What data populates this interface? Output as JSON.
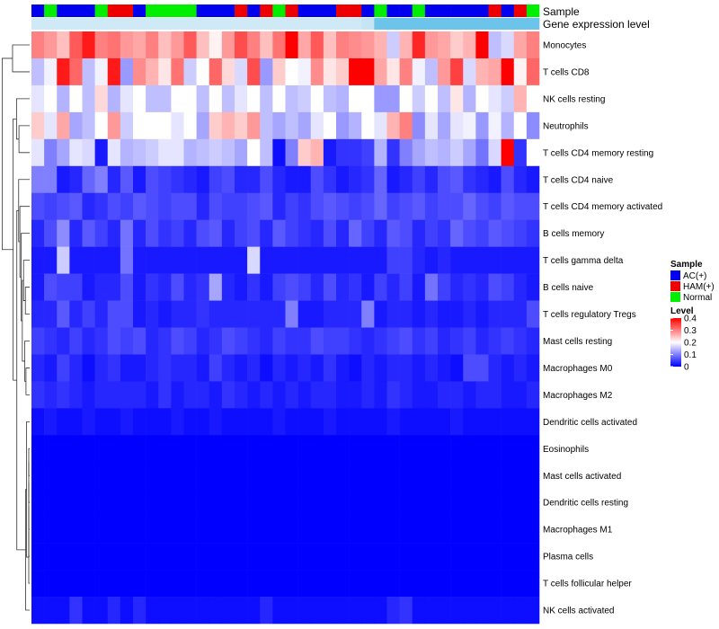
{
  "chart_data": {
    "type": "heatmap",
    "title": "",
    "rows": [
      "Monocytes",
      "T cells CD8",
      "NK cells resting",
      "Neutrophils",
      "T cells CD4 memory resting",
      "T cells CD4 naive",
      "T cells CD4 memory activated",
      "B cells memory",
      "T cells gamma delta",
      "B cells naive",
      "T cells regulatory  Tregs",
      "Mast cells resting",
      "Macrophages M0",
      "Macrophages M2",
      "Dendritic cells activated",
      "Eosinophils",
      "Mast cells activated",
      "Dendritic cells resting",
      "Macrophages M1",
      "Plasma cells",
      "T cells follicular helper",
      "NK cells activated"
    ],
    "annotation_tracks": {
      "sample_label": "Sample",
      "expression_label": "Gene expression level",
      "sample_groups": [
        "AC(+)",
        "Normal",
        "AC(+)",
        "AC(+)",
        "AC(+)",
        "Normal",
        "HAM(+)",
        "HAM(+)",
        "AC(+)",
        "Normal",
        "Normal",
        "Normal",
        "Normal",
        "AC(+)",
        "AC(+)",
        "AC(+)",
        "HAM(+)",
        "AC(+)",
        "HAM(+)",
        "Normal",
        "HAM(+)",
        "AC(+)",
        "AC(+)",
        "AC(+)",
        "HAM(+)",
        "HAM(+)",
        "AC(+)",
        "Normal",
        "AC(+)",
        "AC(+)",
        "Normal",
        "AC(+)",
        "AC(+)",
        "AC(+)",
        "AC(+)",
        "AC(+)",
        "HAM(+)",
        "AC(+)",
        "HAM(+)",
        "Normal"
      ],
      "expression_levels": [
        0.1,
        0.1,
        0.1,
        0.1,
        0.1,
        0.1,
        0.1,
        0.1,
        0.1,
        0.1,
        0.1,
        0.1,
        0.1,
        0.1,
        0.1,
        0.1,
        0.1,
        0.1,
        0.1,
        0.1,
        0.1,
        0.1,
        0.1,
        0.1,
        0.1,
        0.1,
        0.12,
        0.3,
        0.3,
        0.3,
        0.3,
        0.3,
        0.3,
        0.3,
        0.3,
        0.3,
        0.3,
        0.3,
        0.3,
        0.3
      ]
    },
    "values": [
      [
        0.3,
        0.28,
        0.25,
        0.33,
        0.38,
        0.3,
        0.31,
        0.28,
        0.27,
        0.3,
        0.25,
        0.28,
        0.33,
        0.25,
        0.21,
        0.28,
        0.34,
        0.3,
        0.25,
        0.31,
        0.4,
        0.27,
        0.33,
        0.25,
        0.3,
        0.29,
        0.28,
        0.26,
        0.16,
        0.26,
        0.37,
        0.28,
        0.27,
        0.24,
        0.26,
        0.4,
        0.15,
        0.17,
        0.27,
        0.3
      ],
      [
        0.15,
        0.19,
        0.38,
        0.32,
        0.15,
        0.19,
        0.38,
        0.12,
        0.29,
        0.26,
        0.22,
        0.31,
        0.16,
        0.2,
        0.32,
        0.23,
        0.17,
        0.34,
        0.12,
        0.24,
        0.2,
        0.19,
        0.29,
        0.22,
        0.24,
        0.44,
        0.44,
        0.27,
        0.22,
        0.3,
        0.19,
        0.15,
        0.28,
        0.35,
        0.17,
        0.26,
        0.27,
        0.42,
        0.21,
        0.32
      ],
      [
        0.18,
        0.2,
        0.14,
        0.2,
        0.15,
        0.23,
        0.14,
        0.18,
        0.2,
        0.15,
        0.15,
        0.2,
        0.2,
        0.15,
        0.2,
        0.15,
        0.18,
        0.2,
        0.15,
        0.2,
        0.15,
        0.16,
        0.2,
        0.15,
        0.14,
        0.2,
        0.2,
        0.12,
        0.12,
        0.2,
        0.16,
        0.2,
        0.15,
        0.22,
        0.14,
        0.2,
        0.18,
        0.16,
        0.26,
        0.2
      ],
      [
        0.24,
        0.18,
        0.27,
        0.13,
        0.15,
        0.2,
        0.28,
        0.16,
        0.2,
        0.2,
        0.2,
        0.18,
        0.2,
        0.13,
        0.24,
        0.26,
        0.24,
        0.28,
        0.15,
        0.13,
        0.15,
        0.13,
        0.18,
        0.2,
        0.12,
        0.14,
        0.2,
        0.18,
        0.26,
        0.3,
        0.11,
        0.18,
        0.13,
        0.18,
        0.19,
        0.12,
        0.19,
        0.14,
        0.2,
        0.11
      ],
      [
        0.18,
        0.1,
        0.13,
        0.18,
        0.17,
        0.02,
        0.18,
        0.14,
        0.15,
        0.16,
        0.18,
        0.18,
        0.14,
        0.15,
        0.16,
        0.15,
        0.13,
        0.2,
        0.15,
        0.01,
        0.1,
        0.24,
        0.26,
        0.02,
        0.04,
        0.04,
        0.05,
        0.14,
        0.04,
        0.1,
        0.13,
        0.15,
        0.14,
        0.16,
        0.13,
        0.09,
        0.17,
        0.44,
        0.04,
        0.2
      ],
      [
        0.1,
        0.1,
        0.02,
        0.03,
        0.08,
        0.1,
        0.03,
        0.07,
        0.02,
        0.06,
        0.05,
        0.04,
        0.03,
        0.02,
        0.05,
        0.06,
        0.03,
        0.03,
        0.06,
        0.03,
        0.02,
        0.02,
        0.06,
        0.04,
        0.02,
        0.03,
        0.04,
        0.08,
        0.02,
        0.03,
        0.05,
        0.03,
        0.06,
        0.07,
        0.04,
        0.03,
        0.02,
        0.06,
        0.03,
        0.02
      ],
      [
        0.06,
        0.05,
        0.06,
        0.07,
        0.03,
        0.04,
        0.06,
        0.05,
        0.07,
        0.06,
        0.05,
        0.06,
        0.06,
        0.03,
        0.06,
        0.05,
        0.05,
        0.06,
        0.07,
        0.03,
        0.05,
        0.04,
        0.06,
        0.07,
        0.06,
        0.05,
        0.06,
        0.08,
        0.05,
        0.06,
        0.07,
        0.05,
        0.06,
        0.06,
        0.08,
        0.06,
        0.05,
        0.07,
        0.06,
        0.06
      ],
      [
        0.03,
        0.06,
        0.11,
        0.03,
        0.07,
        0.05,
        0.03,
        0.09,
        0.03,
        0.06,
        0.04,
        0.05,
        0.03,
        0.06,
        0.07,
        0.03,
        0.05,
        0.06,
        0.03,
        0.07,
        0.05,
        0.04,
        0.03,
        0.06,
        0.03,
        0.08,
        0.05,
        0.03,
        0.07,
        0.06,
        0.03,
        0.05,
        0.04,
        0.08,
        0.06,
        0.05,
        0.07,
        0.06,
        0.05,
        0.04
      ],
      [
        0.02,
        0.02,
        0.16,
        0.02,
        0.02,
        0.02,
        0.02,
        0.09,
        0.02,
        0.02,
        0.02,
        0.02,
        0.02,
        0.02,
        0.02,
        0.02,
        0.02,
        0.17,
        0.02,
        0.02,
        0.02,
        0.02,
        0.02,
        0.02,
        0.02,
        0.02,
        0.02,
        0.02,
        0.05,
        0.05,
        0.03,
        0.02,
        0.03,
        0.02,
        0.02,
        0.02,
        0.02,
        0.02,
        0.02,
        0.02
      ],
      [
        0.02,
        0.06,
        0.05,
        0.05,
        0.02,
        0.03,
        0.03,
        0.06,
        0.02,
        0.04,
        0.03,
        0.06,
        0.03,
        0.04,
        0.13,
        0.03,
        0.02,
        0.04,
        0.02,
        0.05,
        0.06,
        0.05,
        0.03,
        0.06,
        0.03,
        0.04,
        0.02,
        0.05,
        0.03,
        0.05,
        0.02,
        0.09,
        0.05,
        0.03,
        0.04,
        0.03,
        0.06,
        0.05,
        0.03,
        0.02
      ],
      [
        0.03,
        0.03,
        0.07,
        0.03,
        0.05,
        0.03,
        0.06,
        0.06,
        0.02,
        0.03,
        0.02,
        0.03,
        0.03,
        0.04,
        0.03,
        0.03,
        0.03,
        0.03,
        0.03,
        0.03,
        0.1,
        0.02,
        0.02,
        0.03,
        0.03,
        0.03,
        0.1,
        0.02,
        0.03,
        0.03,
        0.02,
        0.03,
        0.02,
        0.02,
        0.03,
        0.02,
        0.03,
        0.03,
        0.03,
        0.06
      ],
      [
        0.05,
        0.04,
        0.03,
        0.05,
        0.03,
        0.04,
        0.06,
        0.05,
        0.06,
        0.03,
        0.04,
        0.06,
        0.05,
        0.03,
        0.04,
        0.06,
        0.05,
        0.04,
        0.03,
        0.05,
        0.04,
        0.04,
        0.06,
        0.05,
        0.05,
        0.04,
        0.03,
        0.04,
        0.05,
        0.06,
        0.04,
        0.05,
        0.03,
        0.04,
        0.05,
        0.03,
        0.04,
        0.05,
        0.04,
        0.03
      ],
      [
        0.03,
        0.02,
        0.05,
        0.03,
        0.01,
        0.03,
        0.04,
        0.02,
        0.02,
        0.03,
        0.04,
        0.03,
        0.03,
        0.02,
        0.05,
        0.03,
        0.02,
        0.03,
        0.01,
        0.03,
        0.02,
        0.03,
        0.02,
        0.04,
        0.02,
        0.01,
        0.03,
        0.02,
        0.03,
        0.03,
        0.02,
        0.03,
        0.02,
        0.01,
        0.06,
        0.06,
        0.03,
        0.02,
        0.03,
        0.02
      ],
      [
        0.04,
        0.03,
        0.04,
        0.03,
        0.02,
        0.03,
        0.03,
        0.03,
        0.03,
        0.02,
        0.04,
        0.02,
        0.03,
        0.03,
        0.02,
        0.04,
        0.03,
        0.02,
        0.03,
        0.02,
        0.03,
        0.02,
        0.03,
        0.03,
        0.02,
        0.02,
        0.03,
        0.02,
        0.04,
        0.03,
        0.02,
        0.02,
        0.03,
        0.03,
        0.02,
        0.03,
        0.03,
        0.02,
        0.02,
        0.03
      ],
      [
        0.01,
        0.02,
        0.01,
        0.01,
        0.02,
        0.01,
        0.01,
        0.02,
        0.01,
        0.01,
        0.01,
        0.02,
        0.01,
        0.01,
        0.02,
        0.01,
        0.01,
        0.01,
        0.01,
        0.02,
        0.01,
        0.01,
        0.01,
        0.02,
        0.01,
        0.01,
        0.01,
        0.01,
        0.02,
        0.01,
        0.01,
        0.01,
        0.01,
        0.02,
        0.01,
        0.01,
        0.01,
        0.01,
        0.01,
        0.01
      ],
      [
        0.0,
        0.0,
        0.0,
        0.0,
        0.0,
        0.0,
        0.0,
        0.0,
        0.0,
        0.0,
        0.0,
        0.0,
        0.0,
        0.0,
        0.0,
        0.0,
        0.0,
        0.0,
        0.0,
        0.0,
        0.0,
        0.0,
        0.0,
        0.0,
        0.0,
        0.0,
        0.0,
        0.0,
        0.0,
        0.0,
        0.0,
        0.0,
        0.0,
        0.0,
        0.0,
        0.0,
        0.0,
        0.0,
        0.0,
        0.0
      ],
      [
        0.0,
        0.0,
        0.0,
        0.0,
        0.0,
        0.0,
        0.0,
        0.0,
        0.0,
        0.0,
        0.0,
        0.0,
        0.0,
        0.0,
        0.0,
        0.0,
        0.0,
        0.0,
        0.0,
        0.0,
        0.0,
        0.0,
        0.0,
        0.0,
        0.0,
        0.0,
        0.0,
        0.0,
        0.0,
        0.0,
        0.0,
        0.0,
        0.0,
        0.0,
        0.0,
        0.0,
        0.0,
        0.0,
        0.0,
        0.0
      ],
      [
        0.0,
        0.0,
        0.0,
        0.0,
        0.0,
        0.0,
        0.0,
        0.0,
        0.0,
        0.0,
        0.0,
        0.0,
        0.0,
        0.0,
        0.0,
        0.0,
        0.0,
        0.0,
        0.0,
        0.0,
        0.0,
        0.0,
        0.0,
        0.0,
        0.0,
        0.0,
        0.0,
        0.0,
        0.0,
        0.0,
        0.0,
        0.0,
        0.0,
        0.0,
        0.0,
        0.0,
        0.0,
        0.0,
        0.0,
        0.0
      ],
      [
        0.0,
        0.0,
        0.0,
        0.0,
        0.0,
        0.0,
        0.0,
        0.0,
        0.0,
        0.0,
        0.0,
        0.0,
        0.0,
        0.0,
        0.0,
        0.0,
        0.0,
        0.0,
        0.0,
        0.0,
        0.0,
        0.0,
        0.0,
        0.0,
        0.0,
        0.0,
        0.0,
        0.0,
        0.0,
        0.0,
        0.0,
        0.0,
        0.0,
        0.0,
        0.0,
        0.0,
        0.0,
        0.0,
        0.0,
        0.0
      ],
      [
        0.0,
        0.0,
        0.0,
        0.0,
        0.0,
        0.0,
        0.0,
        0.0,
        0.0,
        0.0,
        0.0,
        0.0,
        0.0,
        0.0,
        0.0,
        0.0,
        0.0,
        0.0,
        0.0,
        0.0,
        0.0,
        0.0,
        0.0,
        0.0,
        0.0,
        0.0,
        0.0,
        0.0,
        0.0,
        0.0,
        0.0,
        0.0,
        0.0,
        0.0,
        0.0,
        0.0,
        0.0,
        0.0,
        0.0,
        0.0
      ],
      [
        0.0,
        0.0,
        0.0,
        0.0,
        0.0,
        0.0,
        0.0,
        0.0,
        0.0,
        0.0,
        0.0,
        0.0,
        0.0,
        0.0,
        0.0,
        0.0,
        0.0,
        0.0,
        0.0,
        0.0,
        0.0,
        0.0,
        0.0,
        0.0,
        0.0,
        0.0,
        0.0,
        0.0,
        0.0,
        0.0,
        0.0,
        0.0,
        0.0,
        0.0,
        0.0,
        0.0,
        0.0,
        0.0,
        0.0,
        0.0
      ],
      [
        0.01,
        0.01,
        0.01,
        0.04,
        0.01,
        0.01,
        0.03,
        0.01,
        0.03,
        0.01,
        0.01,
        0.01,
        0.01,
        0.01,
        0.01,
        0.01,
        0.01,
        0.01,
        0.03,
        0.01,
        0.01,
        0.01,
        0.01,
        0.01,
        0.01,
        0.01,
        0.01,
        0.01,
        0.03,
        0.04,
        0.01,
        0.01,
        0.01,
        0.01,
        0.01,
        0.01,
        0.01,
        0.01,
        0.01,
        0.01
      ]
    ],
    "color_scale": {
      "min": 0,
      "mid": 0.2,
      "max": 0.4,
      "low": "#0000ff",
      "middle": "#ffffff",
      "high": "#ff0000"
    },
    "legend": {
      "position": "right",
      "sample_title": "Sample",
      "sample_entries": [
        {
          "label": "AC(+)",
          "color": "#0000ee"
        },
        {
          "label": "HAM(+)",
          "color": "#ee0000"
        },
        {
          "label": "Normal",
          "color": "#00ee00"
        }
      ],
      "level_title": "Level",
      "level_ticks": [
        "0.4",
        "0.3",
        "0.2",
        "0.1",
        "0"
      ]
    },
    "expression_track_colors": {
      "low": "#cfe9f6",
      "high": "#6cc4ea"
    }
  }
}
